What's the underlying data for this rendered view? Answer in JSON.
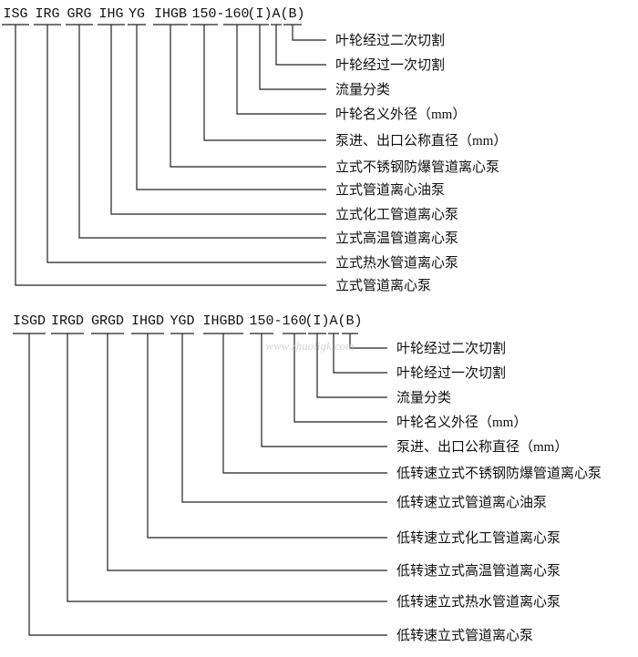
{
  "sections": [
    {
      "codes": [
        "ISG",
        "IRG",
        "GRG",
        "IHG",
        "YG",
        "IHGB",
        "150",
        "160",
        "(I)",
        "A",
        "(B)"
      ],
      "code_separator": "-",
      "labels": [
        {
          "code": "(B)",
          "text": "叶轮经过二次切割"
        },
        {
          "code": "A",
          "text": "叶轮经过一次切割"
        },
        {
          "code": "(I)",
          "text": "流量分类"
        },
        {
          "code": "160",
          "text": "叶轮名义外径（mm）"
        },
        {
          "code": "150",
          "text": "泵进、出口公称直径（mm）"
        },
        {
          "code": "IHGB",
          "text": "立式不锈钢防爆管道离心泵"
        },
        {
          "code": "YG",
          "text": "立式管道离心油泵"
        },
        {
          "code": "IHG",
          "text": "立式化工管道离心泵"
        },
        {
          "code": "GRG",
          "text": "立式高温管道离心泵"
        },
        {
          "code": "IRG",
          "text": "立式热水管道离心泵"
        },
        {
          "code": "ISG",
          "text": "立式管道离心泵"
        }
      ]
    },
    {
      "codes": [
        "ISGD",
        "IRGD",
        "GRGD",
        "IHGD",
        "YGD",
        "IHGBD",
        "150",
        "160",
        "(I)",
        "A",
        "(B)"
      ],
      "code_separator": "-",
      "labels": [
        {
          "code": "(B)",
          "text": "叶轮经过二次切割"
        },
        {
          "code": "A",
          "text": "叶轮经过一次切割"
        },
        {
          "code": "(I)",
          "text": "流量分类"
        },
        {
          "code": "160",
          "text": "叶轮名义外径（mm）"
        },
        {
          "code": "150",
          "text": "泵进、出口公称直径（mm）"
        },
        {
          "code": "IHGBD",
          "text": "低转速立式不锈钢防爆管道离心泵"
        },
        {
          "code": "YGD",
          "text": "低转速立式管道离心油泵"
        },
        {
          "code": "IHGD",
          "text": "低转速立式化工管道离心泵"
        },
        {
          "code": "GRGD",
          "text": "低转速立式高温管道离心泵"
        },
        {
          "code": "IRGD",
          "text": "低转速立式热水管道离心泵"
        },
        {
          "code": "ISGD",
          "text": "低转速立式管道离心泵"
        }
      ]
    }
  ],
  "watermark": "www.zhuoligk.com"
}
